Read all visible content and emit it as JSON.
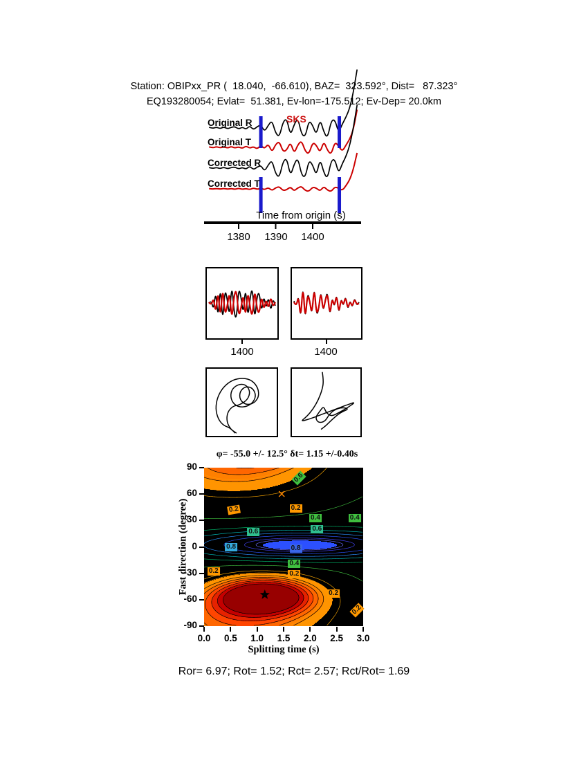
{
  "header": {
    "line1": "Station: OBIPxx_PR (  18.040,  -66.610), BAZ=  323.592°, Dist=   87.323°",
    "line2": "EQ193280054; Evlat=  51.381, Ev-lon=-175.512; Ev-Dep= 20.0km"
  },
  "footer": {
    "results": "Ror= 6.97; Rot= 1.52; Rct= 2.57; Rct/Rot= 1.69",
    "Ror": 6.97,
    "Rot": 1.52,
    "Rct": 2.57,
    "Rct_over_Rot": 1.69
  },
  "chart_data": [
    {
      "id": "seismograms",
      "type": "line",
      "xlabel": "Time from origin (s)",
      "x_ticks": [
        1380,
        1390,
        1400
      ],
      "x_start": 1372,
      "x_step": 1,
      "phase_label": "SKS",
      "window": [
        1386,
        1407.2
      ],
      "window_color": "#1a1acc",
      "series": [
        {
          "name": "Original R",
          "color": "#000000",
          "values": [
            0.08,
            -0.06,
            0.1,
            -0.08,
            0.12,
            -0.1,
            0.08,
            0.15,
            -0.12,
            0.1,
            -0.15,
            0.25,
            -0.2,
            0.15,
            0.35,
            -0.4,
            0.3,
            0.85,
            -0.6,
            -1.0,
            0.7,
            1.05,
            -0.85,
            0.4,
            1.1,
            -0.7,
            -1.0,
            0.85,
            0.3,
            -0.8,
            1.0,
            -0.45,
            -1.15,
            0.8,
            0.95,
            -0.55,
            0.45,
            1.2,
            2.2,
            4.0,
            6.5
          ]
        },
        {
          "name": "Original T",
          "color": "#cc0000",
          "values": [
            0.05,
            -0.06,
            0.08,
            -0.05,
            0.06,
            -0.08,
            0.1,
            -0.08,
            0.06,
            -0.12,
            0.15,
            -0.1,
            0.08,
            -0.18,
            0.22,
            -0.15,
            0.4,
            -0.55,
            0.35,
            0.65,
            -0.5,
            -0.3,
            0.6,
            -0.7,
            0.3,
            0.75,
            -0.45,
            -0.75,
            0.55,
            0.25,
            -0.6,
            0.7,
            -0.35,
            -0.8,
            0.6,
            0.15,
            -0.45,
            0.25,
            0.9,
            2.0,
            4.2
          ]
        },
        {
          "name": "Corrected R",
          "color": "#000000",
          "values": [
            0.06,
            -0.05,
            0.08,
            -0.06,
            0.1,
            -0.08,
            0.06,
            0.12,
            -0.1,
            0.08,
            -0.12,
            0.22,
            -0.18,
            0.12,
            0.3,
            -0.35,
            0.35,
            0.9,
            -0.65,
            -1.05,
            0.75,
            1.1,
            -0.9,
            0.45,
            1.15,
            -0.75,
            -1.05,
            0.9,
            0.35,
            -0.85,
            1.05,
            -0.5,
            -1.2,
            0.85,
            1.0,
            -0.6,
            0.5,
            1.3,
            2.5,
            4.5,
            7.0
          ]
        },
        {
          "name": "Corrected T",
          "color": "#cc0000",
          "values": [
            0.03,
            -0.03,
            0.04,
            -0.03,
            0.05,
            -0.04,
            0.04,
            -0.05,
            0.06,
            -0.05,
            0.04,
            -0.08,
            0.1,
            -0.06,
            0.08,
            -0.1,
            0.15,
            -0.2,
            0.12,
            0.25,
            -0.2,
            -0.1,
            0.22,
            -0.25,
            0.12,
            0.28,
            -0.18,
            -0.28,
            0.2,
            0.1,
            -0.25,
            0.28,
            -0.15,
            -0.3,
            0.22,
            0.08,
            -0.18,
            0.35,
            1.0,
            2.2,
            4.0
          ]
        }
      ]
    },
    {
      "id": "window-waveforms-left",
      "type": "line",
      "x_tick": 1400,
      "series": [
        {
          "name": "R",
          "color": "#000000",
          "values": [
            0.0,
            0.15,
            -0.3,
            0.55,
            -0.7,
            0.8,
            -0.85,
            0.6,
            0.2,
            -0.6,
            0.85,
            -0.4,
            -0.7,
            0.65,
            0.3,
            -0.5,
            0.75,
            -0.65,
            0.25,
            0.7,
            -0.75,
            0.3,
            0.5,
            -0.4,
            0.35,
            -0.25,
            0.3,
            -0.35,
            0.2,
            -0.1
          ]
        },
        {
          "name": "T",
          "color": "#cc0000",
          "values": [
            0.05,
            -0.1,
            0.25,
            -0.45,
            0.6,
            -0.7,
            0.75,
            -0.5,
            -0.15,
            0.55,
            -0.75,
            0.35,
            0.6,
            -0.55,
            -0.25,
            0.45,
            -0.65,
            0.55,
            -0.2,
            -0.6,
            0.65,
            -0.25,
            -0.45,
            0.35,
            -0.3,
            0.2,
            -0.25,
            0.3,
            -0.15,
            0.05
          ]
        }
      ]
    },
    {
      "id": "window-waveforms-right",
      "type": "line",
      "x_tick": 1400,
      "series": [
        {
          "name": "R",
          "color": "#000000",
          "values": [
            0.1,
            -0.2,
            0.4,
            -0.75,
            0.9,
            -0.8,
            0.45,
            0.15,
            -0.55,
            0.8,
            -0.5,
            -0.3,
            0.6,
            -0.4,
            0.2,
            0.5,
            -0.6,
            0.3,
            -0.2,
            0.45,
            -0.5,
            0.25,
            -0.15,
            0.35,
            -0.3,
            0.15,
            -0.2,
            0.25,
            -0.1,
            0.05
          ]
        },
        {
          "name": "T",
          "color": "#cc0000",
          "values": [
            0.05,
            -0.15,
            0.35,
            -0.7,
            0.85,
            -0.75,
            0.4,
            0.1,
            -0.5,
            0.75,
            -0.45,
            -0.25,
            0.55,
            -0.35,
            0.15,
            0.45,
            -0.55,
            0.25,
            -0.15,
            0.4,
            -0.45,
            0.2,
            -0.1,
            0.3,
            -0.25,
            0.1,
            -0.15,
            0.2,
            -0.05,
            0.0
          ]
        }
      ]
    },
    {
      "id": "particle-motion-left",
      "type": "scatter-path",
      "color": "#000000",
      "points": [
        [
          0.4,
          0.98
        ],
        [
          0.33,
          0.9
        ],
        [
          0.22,
          0.86
        ],
        [
          0.14,
          0.76
        ],
        [
          0.1,
          0.6
        ],
        [
          0.13,
          0.42
        ],
        [
          0.22,
          0.26
        ],
        [
          0.36,
          0.15
        ],
        [
          0.52,
          0.12
        ],
        [
          0.66,
          0.16
        ],
        [
          0.75,
          0.28
        ],
        [
          0.76,
          0.42
        ],
        [
          0.68,
          0.52
        ],
        [
          0.56,
          0.54
        ],
        [
          0.47,
          0.46
        ],
        [
          0.47,
          0.33
        ],
        [
          0.56,
          0.25
        ],
        [
          0.67,
          0.28
        ],
        [
          0.72,
          0.4
        ],
        [
          0.66,
          0.52
        ],
        [
          0.54,
          0.58
        ],
        [
          0.41,
          0.56
        ],
        [
          0.33,
          0.45
        ],
        [
          0.34,
          0.31
        ],
        [
          0.44,
          0.22
        ],
        [
          0.56,
          0.22
        ],
        [
          0.63,
          0.33
        ],
        [
          0.59,
          0.46
        ],
        [
          0.47,
          0.54
        ],
        [
          0.36,
          0.56
        ],
        [
          0.28,
          0.66
        ],
        [
          0.27,
          0.8
        ],
        [
          0.33,
          0.92
        ],
        [
          0.42,
          0.98
        ]
      ]
    },
    {
      "id": "particle-motion-right",
      "type": "scatter-path",
      "color": "#000000",
      "points": [
        [
          0.44,
          0.03
        ],
        [
          0.46,
          0.16
        ],
        [
          0.44,
          0.3
        ],
        [
          0.38,
          0.46
        ],
        [
          0.3,
          0.6
        ],
        [
          0.2,
          0.72
        ],
        [
          0.1,
          0.8
        ],
        [
          0.24,
          0.76
        ],
        [
          0.4,
          0.7
        ],
        [
          0.56,
          0.64
        ],
        [
          0.72,
          0.58
        ],
        [
          0.88,
          0.52
        ],
        [
          0.95,
          0.5
        ],
        [
          0.84,
          0.58
        ],
        [
          0.7,
          0.66
        ],
        [
          0.58,
          0.72
        ],
        [
          0.5,
          0.66
        ],
        [
          0.46,
          0.56
        ],
        [
          0.4,
          0.64
        ],
        [
          0.33,
          0.74
        ],
        [
          0.38,
          0.82
        ],
        [
          0.48,
          0.8
        ],
        [
          0.54,
          0.7
        ],
        [
          0.62,
          0.62
        ],
        [
          0.74,
          0.58
        ],
        [
          0.86,
          0.6
        ],
        [
          0.72,
          0.66
        ],
        [
          0.6,
          0.76
        ],
        [
          0.5,
          0.86
        ],
        [
          0.42,
          0.92
        ]
      ]
    },
    {
      "id": "error-surface",
      "type": "heatmap",
      "title": "φ= -55.0 +/- 12.5°  δt= 1.15 +/-0.40s",
      "xlabel": "Splitting time (s)",
      "ylabel": "Fast direction (degree)",
      "xlim": [
        0,
        3
      ],
      "ylim": [
        -90,
        90
      ],
      "x_ticks": [
        0.0,
        0.5,
        1.0,
        1.5,
        2.0,
        2.5,
        3.0
      ],
      "y_ticks": [
        90,
        60,
        30,
        0,
        -30,
        -60,
        -90
      ],
      "best": {
        "phi": -55.0,
        "phi_err": 12.5,
        "dt": 1.15,
        "dt_err": 0.4
      },
      "star": [
        1.15,
        -55
      ],
      "surface": {
        "base": 0.43,
        "lobes": [
          {
            "cx": 1.15,
            "cy": -55,
            "wx": 1.1,
            "wy": 24,
            "amp": -0.43
          },
          {
            "cx": 0.55,
            "cy": 90,
            "wx": 2.0,
            "wy": 42,
            "amp": -0.25
          },
          {
            "cx": 1.8,
            "cy": 2,
            "wx": 2.0,
            "wy": 15,
            "amp": 0.62
          }
        ]
      },
      "fill_palette": [
        [
          0.035,
          "#980000"
        ],
        [
          0.07,
          "#c40000"
        ],
        [
          0.105,
          "#e62200"
        ],
        [
          0.14,
          "#ff4500"
        ],
        [
          0.175,
          "#ff6600"
        ],
        [
          0.21,
          "#ff7f00"
        ],
        [
          0.26,
          "#ff9400"
        ],
        [
          0.975,
          "#000000"
        ],
        [
          1.01,
          "#2c50ff"
        ]
      ],
      "contour_black_levels": [
        0.035,
        0.07,
        0.105,
        0.14,
        0.175,
        0.21
      ],
      "contour_colored": [
        [
          0.2,
          "#ff9900"
        ],
        [
          0.26,
          "#ff9900"
        ],
        [
          0.3,
          "#ffaa00"
        ],
        [
          0.4,
          "#3fbf3f"
        ],
        [
          0.5,
          "#00c070"
        ],
        [
          0.6,
          "#00bcbc"
        ],
        [
          0.7,
          "#2a90ff"
        ],
        [
          0.8,
          "#2a55ff"
        ],
        [
          0.9,
          "#4646ff"
        ],
        [
          0.95,
          "#6a6aff"
        ]
      ],
      "x_marker": {
        "x": 1.47,
        "y": 60,
        "color": "#ff8800"
      },
      "labels": [
        {
          "dt": 0.56,
          "phi": 42,
          "t": "0.2",
          "bg": "#ff9900",
          "rot": -10
        },
        {
          "dt": 1.73,
          "phi": 44,
          "t": "0.2",
          "bg": "#ff9900",
          "rot": 0
        },
        {
          "dt": 2.1,
          "phi": 33,
          "t": "0.4",
          "bg": "#3fbf3f",
          "rot": 0
        },
        {
          "dt": 2.84,
          "phi": 33,
          "t": "0.4",
          "bg": "#3fbf3f",
          "rot": 0
        },
        {
          "dt": 0.93,
          "phi": 17,
          "t": "0.6",
          "bg": "#2fbf8f",
          "rot": 0
        },
        {
          "dt": 2.13,
          "phi": 20,
          "t": "0.6",
          "bg": "#2fbf8f",
          "rot": 0
        },
        {
          "dt": 0.51,
          "phi": 0,
          "t": "0.8",
          "bg": "#35aadd",
          "rot": 0
        },
        {
          "dt": 1.73,
          "phi": -2,
          "t": "0.8",
          "bg": "#3a66e8",
          "rot": 0
        },
        {
          "dt": 0.18,
          "phi": -28,
          "t": "0.2",
          "bg": "#ff9900",
          "rot": 0
        },
        {
          "dt": 1.7,
          "phi": -19,
          "t": "0.4",
          "bg": "#3fbf3f",
          "rot": 0
        },
        {
          "dt": 1.7,
          "phi": -31,
          "t": "0.2",
          "bg": "#ff9900",
          "rot": 0
        },
        {
          "dt": 2.44,
          "phi": -53,
          "t": "0.2",
          "bg": "#ff9900",
          "rot": 0
        },
        {
          "dt": 2.88,
          "phi": -72,
          "t": "0.2",
          "bg": "#ff9900",
          "rot": -45
        },
        {
          "dt": 1.79,
          "phi": 78,
          "t": "0.6",
          "bg": "#3fbf3f",
          "rot": -45
        }
      ]
    }
  ]
}
